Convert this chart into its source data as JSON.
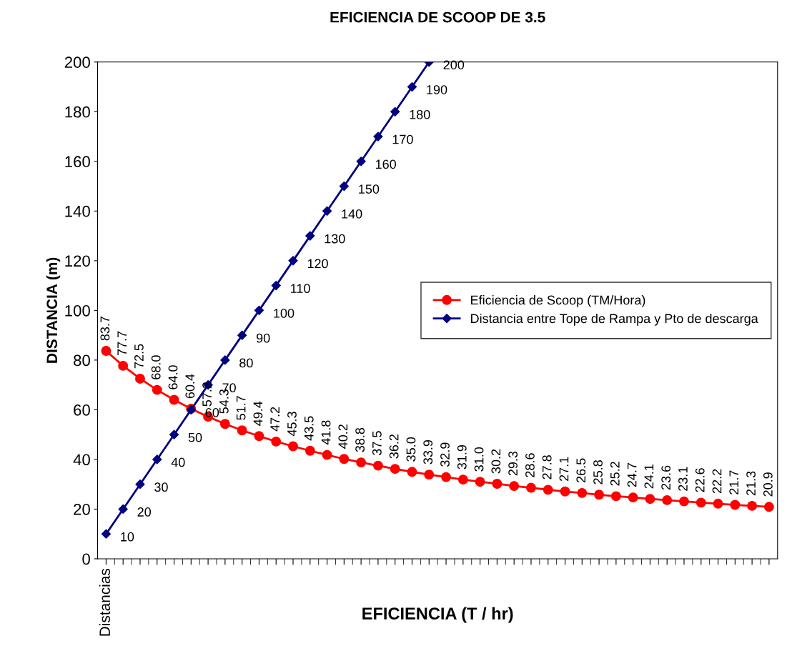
{
  "chart_data": {
    "type": "line",
    "title": "EFICIENCIA DE SCOOP DE 3.5",
    "xlabel": "EFICIENCIA (T / hr)",
    "ylabel": "DISTANCIA (m)",
    "categories": [
      "Distancias",
      null,
      null,
      null,
      null,
      null,
      null,
      null,
      null,
      null,
      null,
      null,
      null,
      null,
      null,
      null,
      null,
      null,
      null,
      null,
      null,
      null,
      null,
      null,
      null,
      null,
      null,
      null,
      null,
      null,
      null,
      null,
      null,
      null,
      null,
      null,
      null,
      null,
      null,
      null
    ],
    "series": [
      {
        "name": "Eficiencia de Scoop (TM/Hora)",
        "color": "#ff0000",
        "marker": "circle",
        "values": [
          83.7,
          77.7,
          72.5,
          68.0,
          64.0,
          60.4,
          57.2,
          54.3,
          51.7,
          49.4,
          47.2,
          45.3,
          43.5,
          41.8,
          40.2,
          38.8,
          37.5,
          36.2,
          35.0,
          33.9,
          32.9,
          31.9,
          31.0,
          30.2,
          29.3,
          28.6,
          27.8,
          27.1,
          26.5,
          25.8,
          25.2,
          24.7,
          24.1,
          23.6,
          23.1,
          22.6,
          22.2,
          21.7,
          21.3,
          20.9
        ],
        "value_labels": [
          "83.7",
          "77.7",
          "72.5",
          "68.0",
          "64.0",
          "60.4",
          "57.2",
          "54.3",
          "51.7",
          "49.4",
          "47.2",
          "45.3",
          "43.5",
          "41.8",
          "40.2",
          "38.8",
          "37.5",
          "36.2",
          "35.0",
          "33.9",
          "32.9",
          "31.9",
          "31.0",
          "30.2",
          "29.3",
          "28.6",
          "27.8",
          "27.1",
          "26.5",
          "25.8",
          "25.2",
          "24.7",
          "24.1",
          "23.6",
          "23.1",
          "22.6",
          "22.2",
          "21.7",
          "21.3",
          "20.9"
        ]
      },
      {
        "name": "Distancia entre Tope de Rampa y Pto de descarga",
        "color": "#000080",
        "marker": "diamond",
        "values": [
          10,
          20,
          30,
          40,
          50,
          60,
          70,
          80,
          90,
          100,
          110,
          120,
          130,
          140,
          150,
          160,
          170,
          180,
          190,
          200,
          null,
          null,
          null,
          null,
          null,
          null,
          null,
          null,
          null,
          null,
          null,
          null,
          null,
          null,
          null,
          null,
          null,
          null,
          null,
          null
        ],
        "value_labels": [
          "10",
          "20",
          "30",
          "40",
          "50",
          "60",
          "70",
          "80",
          "90",
          "100",
          "110",
          "120",
          "130",
          "140",
          "150",
          "160",
          "170",
          "180",
          "190",
          "200",
          null,
          null,
          null,
          null,
          null,
          null,
          null,
          null,
          null,
          null,
          null,
          null,
          null,
          null,
          null,
          null,
          null,
          null,
          null,
          null
        ]
      }
    ],
    "ylim": [
      0,
      200
    ],
    "yticks": [
      0,
      20,
      40,
      60,
      80,
      100,
      120,
      140,
      160,
      180,
      200
    ],
    "grid": false,
    "legend": "right",
    "line_style": "solid"
  }
}
